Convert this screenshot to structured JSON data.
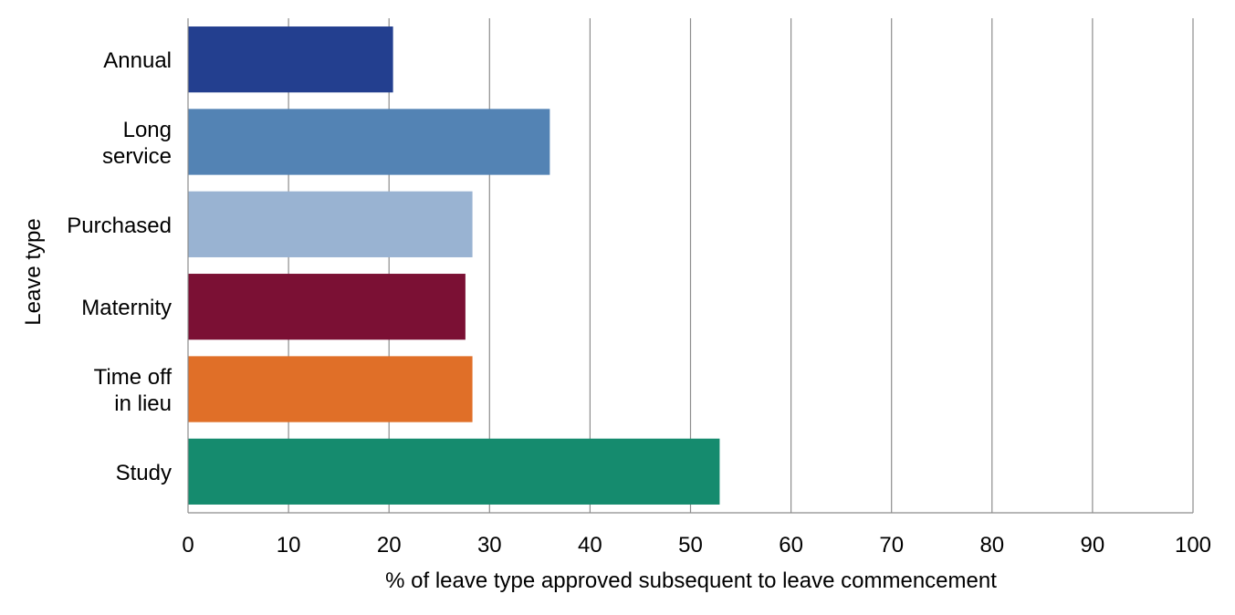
{
  "chart_data": {
    "type": "bar",
    "orientation": "horizontal",
    "categories": [
      [
        "Annual"
      ],
      [
        "Long",
        "service"
      ],
      [
        "Purchased"
      ],
      [
        "Maternity"
      ],
      [
        "Time off",
        "in lieu"
      ],
      [
        "Study"
      ]
    ],
    "values": [
      20.4,
      36.0,
      28.3,
      27.6,
      28.3,
      52.9
    ],
    "colors": [
      "#233f8f",
      "#5383b4",
      "#99b3d2",
      "#7b1034",
      "#e06f28",
      "#158b6e"
    ],
    "xlim": [
      0,
      100
    ],
    "xticks": [
      0,
      10,
      20,
      30,
      40,
      50,
      60,
      70,
      80,
      90,
      100
    ],
    "xlabel": "% of leave type approved subsequent to leave commencement",
    "ylabel": "Leave type",
    "grid": "vertical",
    "legend": "none"
  }
}
